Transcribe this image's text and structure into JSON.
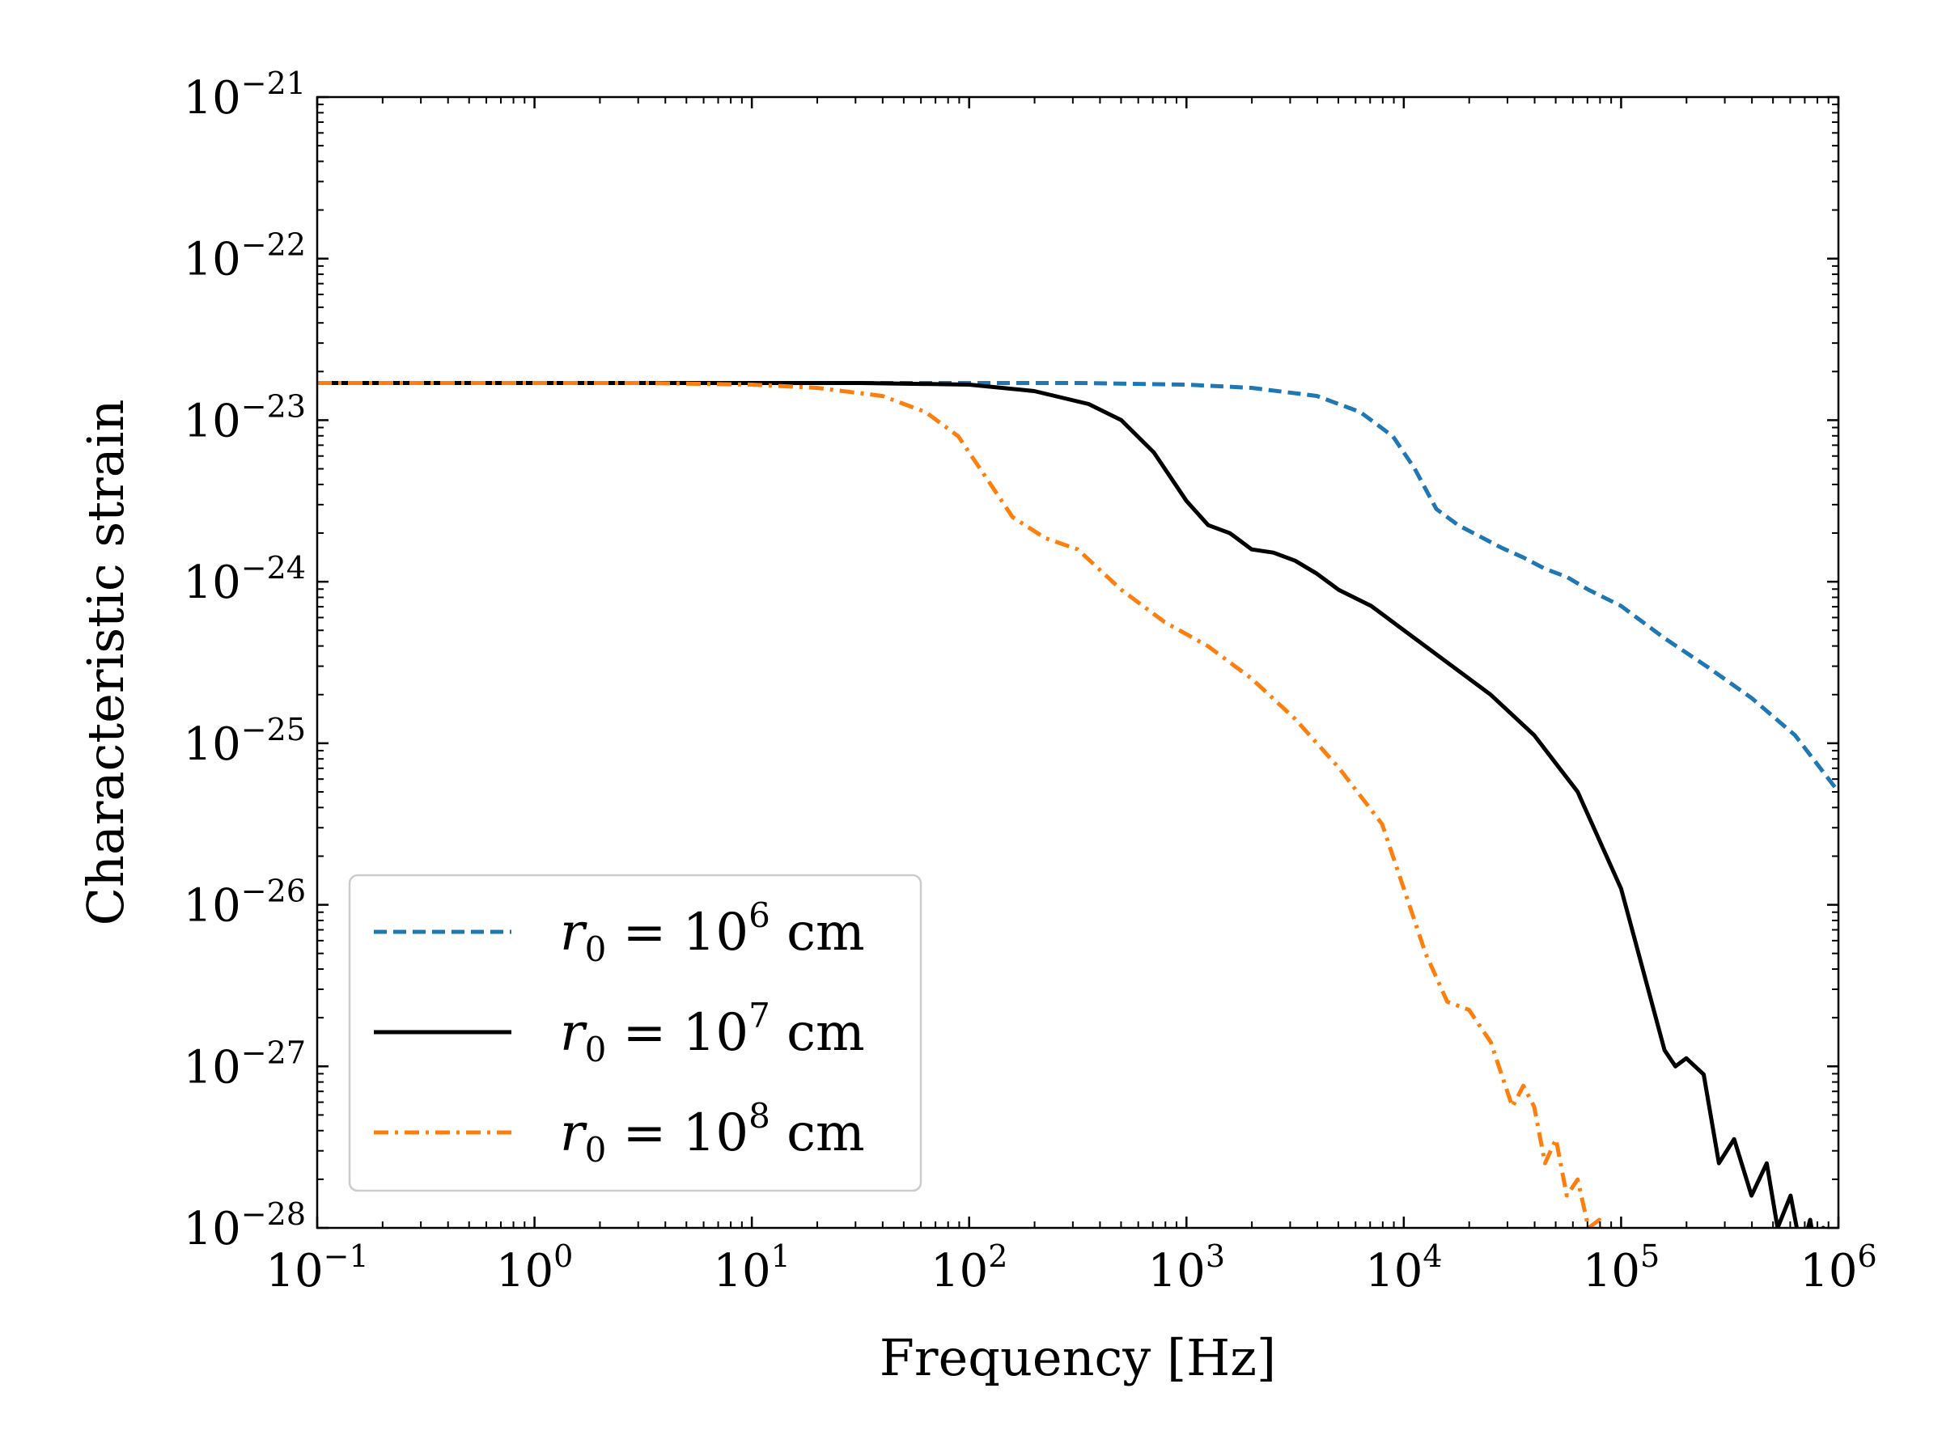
{
  "chart_data": {
    "type": "line",
    "title": "",
    "xlabel": "Frequency [Hz]",
    "ylabel": "Characteristic strain",
    "xscale": "log",
    "yscale": "log",
    "xlim": [
      0.1,
      1000000
    ],
    "ylim": [
      1e-28,
      1e-21
    ],
    "legend_position": "lower-left",
    "x_ticks": [
      {
        "base": "10",
        "exp": "−1",
        "value": 0.1
      },
      {
        "base": "10",
        "exp": "0",
        "value": 1
      },
      {
        "base": "10",
        "exp": "1",
        "value": 10
      },
      {
        "base": "10",
        "exp": "2",
        "value": 100
      },
      {
        "base": "10",
        "exp": "3",
        "value": 1000
      },
      {
        "base": "10",
        "exp": "4",
        "value": 10000
      },
      {
        "base": "10",
        "exp": "5",
        "value": 100000
      },
      {
        "base": "10",
        "exp": "6",
        "value": 1000000
      }
    ],
    "y_ticks": [
      {
        "base": "10",
        "exp": "−21",
        "value": 1e-21
      },
      {
        "base": "10",
        "exp": "−22",
        "value": 1e-22
      },
      {
        "base": "10",
        "exp": "−23",
        "value": 1e-23
      },
      {
        "base": "10",
        "exp": "−24",
        "value": 1e-24
      },
      {
        "base": "10",
        "exp": "−25",
        "value": 1e-25
      },
      {
        "base": "10",
        "exp": "−26",
        "value": 1e-26
      },
      {
        "base": "10",
        "exp": "−27",
        "value": 1e-27
      },
      {
        "base": "10",
        "exp": "−28",
        "value": 1e-28
      }
    ],
    "series": [
      {
        "name": "r0 = 10^6 cm",
        "label_prefix": "r",
        "label_sub": "0",
        "label_mid": " = 10",
        "label_exp": "6",
        "label_suffix": " cm",
        "color": "#1f77b4",
        "dash": "dashed",
        "log10_x": [
          -1,
          2.5,
          3.0,
          3.3,
          3.6,
          3.8,
          3.95,
          4.05,
          4.15,
          4.25,
          4.35,
          4.45,
          4.55,
          4.65,
          4.75,
          4.85,
          5.0,
          5.2,
          5.4,
          5.6,
          5.8,
          6.0
        ],
        "log10_y": [
          -22.77,
          -22.77,
          -22.78,
          -22.8,
          -22.85,
          -22.95,
          -23.1,
          -23.3,
          -23.55,
          -23.65,
          -23.72,
          -23.79,
          -23.85,
          -23.92,
          -23.97,
          -24.05,
          -24.15,
          -24.35,
          -24.53,
          -24.72,
          -24.95,
          -25.3
        ]
      },
      {
        "name": "r0 = 10^7 cm",
        "label_prefix": "r",
        "label_sub": "0",
        "label_mid": " = 10",
        "label_exp": "7",
        "label_suffix": " cm",
        "color": "#000000",
        "dash": "solid",
        "log10_x": [
          -1,
          1.5,
          2.0,
          2.3,
          2.55,
          2.7,
          2.85,
          3.0,
          3.1,
          3.2,
          3.3,
          3.4,
          3.5,
          3.6,
          3.7,
          3.85,
          4.0,
          4.2,
          4.4,
          4.6,
          4.8,
          5.0,
          5.1,
          5.2,
          5.25,
          5.3,
          5.38,
          5.45,
          5.52,
          5.6,
          5.67,
          5.72,
          5.78,
          5.83,
          5.87,
          5.9,
          5.93,
          5.95,
          6.0
        ],
        "log10_y": [
          -22.77,
          -22.77,
          -22.78,
          -22.82,
          -22.9,
          -23.0,
          -23.2,
          -23.5,
          -23.65,
          -23.7,
          -23.8,
          -23.82,
          -23.87,
          -23.95,
          -24.05,
          -24.15,
          -24.3,
          -24.5,
          -24.7,
          -24.95,
          -25.3,
          -25.9,
          -26.4,
          -26.9,
          -27.0,
          -26.95,
          -27.05,
          -27.6,
          -27.45,
          -27.8,
          -27.6,
          -28.0,
          -27.8,
          -28.15,
          -27.95,
          -28.2,
          -28.0,
          -28.3,
          -28.4
        ]
      },
      {
        "name": "r0 = 10^8 cm",
        "label_prefix": "r",
        "label_sub": "0",
        "label_mid": " = 10",
        "label_exp": "8",
        "label_suffix": " cm",
        "color": "#ff7f0e",
        "dash": "dashdot",
        "log10_x": [
          -1,
          0.5,
          1.0,
          1.3,
          1.6,
          1.8,
          1.95,
          2.1,
          2.2,
          2.35,
          2.5,
          2.7,
          2.9,
          3.1,
          3.3,
          3.5,
          3.7,
          3.9,
          4.0,
          4.1,
          4.2,
          4.3,
          4.4,
          4.5,
          4.55,
          4.6,
          4.65,
          4.7,
          4.75,
          4.8,
          4.85,
          4.9,
          4.95
        ],
        "log10_y": [
          -22.77,
          -22.77,
          -22.78,
          -22.8,
          -22.85,
          -22.95,
          -23.1,
          -23.4,
          -23.6,
          -23.73,
          -23.8,
          -24.05,
          -24.25,
          -24.4,
          -24.6,
          -24.85,
          -25.15,
          -25.5,
          -25.9,
          -26.3,
          -26.6,
          -26.65,
          -26.85,
          -27.25,
          -27.12,
          -27.25,
          -27.6,
          -27.45,
          -27.8,
          -27.7,
          -28.0,
          -27.95,
          -28.3
        ]
      }
    ]
  }
}
